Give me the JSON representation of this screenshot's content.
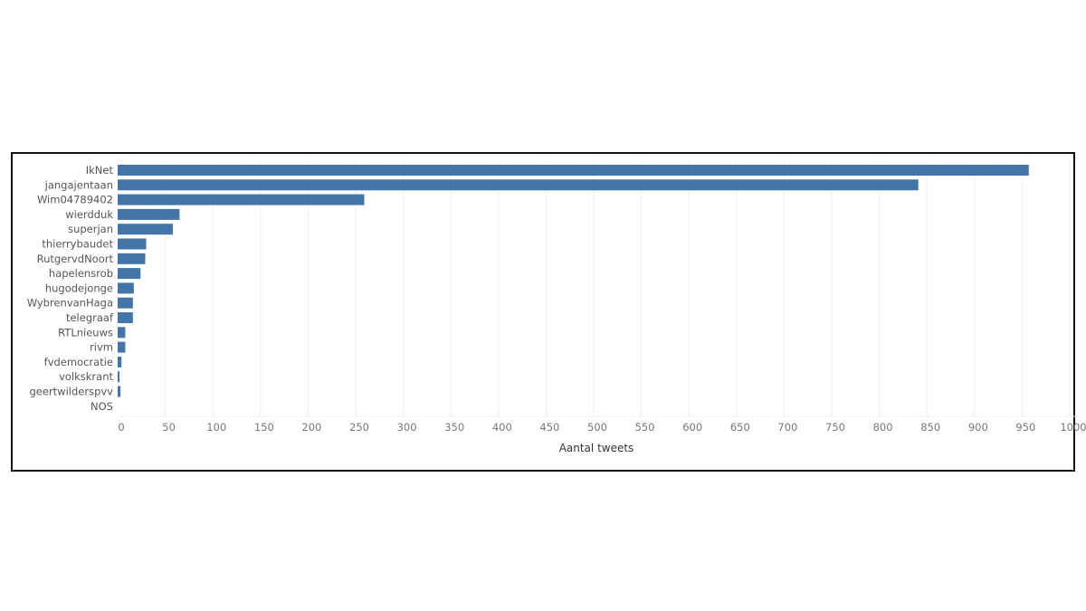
{
  "chart_data": {
    "type": "bar",
    "orientation": "horizontal",
    "categories": [
      "IkNet",
      "jangajentaan",
      "Wim04789402",
      "wierdduk",
      "superjan",
      "thierrybaudet",
      "RutgervdNoort",
      "hapelensrob",
      "hugodejonge",
      "WybrenvanHaga",
      "telegraaf",
      "RTLnieuws",
      "rivm",
      "fvdemocratie",
      "volkskrant",
      "geertwilderspvv",
      "NOS"
    ],
    "values": [
      957,
      841,
      259,
      65,
      58,
      30,
      29,
      24,
      17,
      16,
      16,
      8,
      8,
      4,
      2,
      3,
      0
    ],
    "xlabel": "Aantal tweets",
    "ylabel": "",
    "xlim": [
      0,
      1000
    ],
    "xticks": [
      0,
      50,
      100,
      150,
      200,
      250,
      300,
      350,
      400,
      450,
      500,
      550,
      600,
      650,
      700,
      750,
      800,
      850,
      900,
      950,
      1000
    ],
    "grid": "vertical",
    "bar_color": "#4375a8"
  }
}
